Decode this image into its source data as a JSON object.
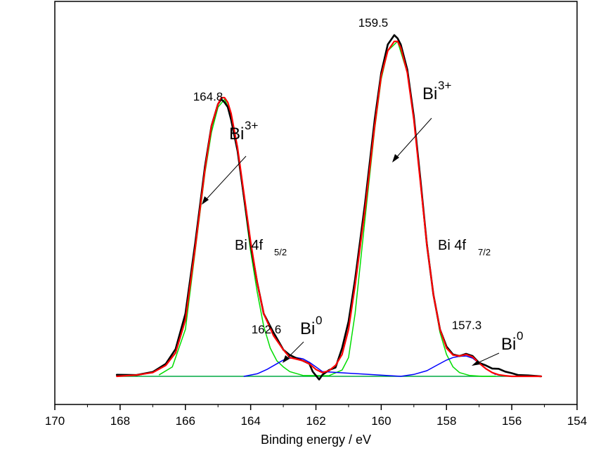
{
  "chart_data": {
    "type": "line",
    "title": "",
    "xlabel": "Binding energy / eV",
    "ylabel": "",
    "xlim": [
      170,
      154
    ],
    "x_reversed": true,
    "xticks": [
      "170",
      "168",
      "166",
      "164",
      "162",
      "160",
      "158",
      "156",
      "154"
    ],
    "y_axis_visible": false,
    "grid": false,
    "legend": "none",
    "colors": {
      "raw": "#000000",
      "envelope": "#ff0000",
      "bi3_components": "#00dd00",
      "bi0_components": "#0000ff",
      "background": "#00aa44"
    },
    "series": [
      {
        "kind": "raw",
        "x": [
          168.1,
          167.5,
          167.0,
          166.6,
          166.3,
          166.0,
          165.7,
          165.4,
          165.2,
          165.0,
          164.9,
          164.8,
          164.7,
          164.6,
          164.4,
          164.2,
          164.0,
          163.8,
          163.6,
          163.3,
          163.0,
          162.8,
          162.6,
          162.4,
          162.2,
          162.1,
          161.9,
          161.8,
          161.6,
          161.4,
          161.2,
          161.0,
          160.8,
          160.5,
          160.2,
          160.0,
          159.8,
          159.6,
          159.5,
          159.4,
          159.2,
          159.0,
          158.8,
          158.6,
          158.4,
          158.2,
          158.0,
          157.8,
          157.6,
          157.4,
          157.2,
          157.0,
          156.8,
          156.6,
          156.4,
          156.2,
          156.0,
          155.8,
          155.5,
          155.1
        ],
        "y": [
          0.005,
          0.004,
          0.014,
          0.04,
          0.087,
          0.2,
          0.425,
          0.67,
          0.8,
          0.87,
          0.885,
          0.875,
          0.86,
          0.82,
          0.72,
          0.57,
          0.42,
          0.3,
          0.2,
          0.14,
          0.085,
          0.068,
          0.058,
          0.05,
          0.04,
          0.015,
          -0.01,
          0.005,
          0.02,
          0.028,
          0.09,
          0.175,
          0.31,
          0.55,
          0.82,
          0.97,
          1.06,
          1.09,
          1.08,
          1.06,
          0.98,
          0.83,
          0.63,
          0.42,
          0.26,
          0.15,
          0.095,
          0.07,
          0.065,
          0.072,
          0.065,
          0.043,
          0.035,
          0.025,
          0.024,
          0.015,
          0.01,
          0.004,
          0.003,
          0.0
        ]
      },
      {
        "kind": "envelope",
        "x": [
          168.1,
          167.5,
          167.0,
          166.6,
          166.3,
          166.0,
          165.7,
          165.4,
          165.2,
          165.0,
          164.9,
          164.8,
          164.7,
          164.6,
          164.4,
          164.2,
          164.0,
          163.8,
          163.6,
          163.3,
          163.0,
          162.8,
          162.6,
          162.4,
          162.2,
          162.0,
          161.8,
          161.6,
          161.4,
          161.2,
          161.0,
          160.8,
          160.5,
          160.2,
          160.0,
          159.8,
          159.6,
          159.5,
          159.4,
          159.2,
          159.0,
          158.8,
          158.6,
          158.4,
          158.2,
          158.0,
          157.8,
          157.6,
          157.4,
          157.2,
          157.0,
          156.8,
          156.6,
          156.4,
          156.2,
          156.0,
          155.8,
          155.5,
          155.1
        ],
        "y": [
          0.0,
          0.004,
          0.012,
          0.035,
          0.075,
          0.18,
          0.41,
          0.66,
          0.8,
          0.87,
          0.89,
          0.89,
          0.875,
          0.84,
          0.73,
          0.58,
          0.43,
          0.3,
          0.2,
          0.13,
          0.085,
          0.06,
          0.055,
          0.05,
          0.04,
          0.022,
          0.012,
          0.018,
          0.035,
          0.07,
          0.15,
          0.29,
          0.53,
          0.8,
          0.96,
          1.04,
          1.07,
          1.07,
          1.05,
          0.97,
          0.82,
          0.62,
          0.42,
          0.26,
          0.15,
          0.09,
          0.068,
          0.065,
          0.07,
          0.062,
          0.042,
          0.025,
          0.012,
          0.005,
          0.002,
          0.0,
          0.0,
          0.0,
          0.0
        ]
      },
      {
        "kind": "bi3_components",
        "x": [
          166.8,
          166.4,
          166.0,
          165.7,
          165.4,
          165.2,
          165.0,
          164.8,
          164.6,
          164.4,
          164.2,
          164.0,
          163.8,
          163.6,
          163.4,
          163.2,
          163.0,
          162.8,
          162.4,
          161.6,
          161.2,
          161.0,
          160.8,
          160.5,
          160.2,
          160.0,
          159.8,
          159.5,
          159.2,
          159.0,
          158.8,
          158.6,
          158.4,
          158.2,
          158.0,
          157.8,
          157.6,
          157.3,
          156.9,
          156.5
        ],
        "y": [
          0.005,
          0.03,
          0.15,
          0.4,
          0.65,
          0.78,
          0.86,
          0.885,
          0.84,
          0.72,
          0.56,
          0.4,
          0.27,
          0.16,
          0.09,
          0.05,
          0.03,
          0.015,
          0.003,
          0.002,
          0.02,
          0.06,
          0.2,
          0.5,
          0.79,
          0.95,
          1.04,
          1.07,
          0.97,
          0.83,
          0.62,
          0.43,
          0.26,
          0.14,
          0.07,
          0.03,
          0.012,
          0.003,
          0.0,
          0.0
        ]
      },
      {
        "kind": "bi0_components",
        "x": [
          164.2,
          163.8,
          163.5,
          163.2,
          163.0,
          162.8,
          162.6,
          162.4,
          162.2,
          162.0,
          161.8,
          159.4,
          159.0,
          158.6,
          158.3,
          158.0,
          157.8,
          157.6,
          157.4,
          157.2,
          157.0,
          156.8,
          156.5
        ],
        "y": [
          0.0,
          0.008,
          0.022,
          0.04,
          0.052,
          0.058,
          0.06,
          0.056,
          0.045,
          0.03,
          0.015,
          0.0,
          0.006,
          0.018,
          0.035,
          0.052,
          0.06,
          0.064,
          0.065,
          0.058,
          0.042,
          0.024,
          0.006
        ]
      },
      {
        "kind": "background",
        "x": [
          168.1,
          155.1
        ],
        "y": [
          0.0,
          0.0
        ]
      }
    ],
    "annotations": {
      "peak_1648": "164.8",
      "peak_1595": "159.5",
      "peak_1626": "162.6",
      "peak_1573": "157.3",
      "bi3_left_base": "Bi",
      "bi3_left_sup": "3+",
      "bi3_right_base": "Bi",
      "bi3_right_sup": "3+",
      "bi0_left_base": "Bi",
      "bi0_left_sup": "0",
      "bi0_right_base": "Bi",
      "bi0_right_sup": "0",
      "band_52_main": "Bi 4f",
      "band_52_sub": "5/2",
      "band_72_main": "Bi 4f",
      "band_72_sub": "7/2"
    }
  }
}
